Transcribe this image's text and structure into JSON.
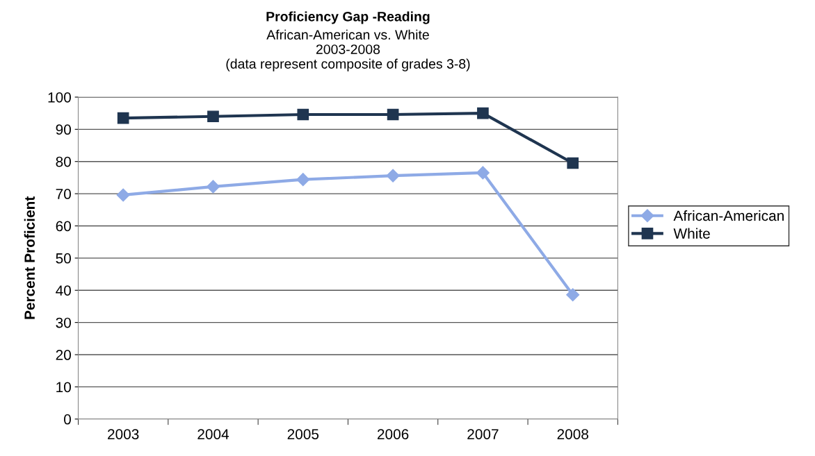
{
  "chart_data": {
    "type": "line",
    "title": "Proficiency Gap -Reading",
    "subtitle": "African-American vs. White\n2003-2008\n(data represent composite of grades 3-8)",
    "ylabel": "Percent Proficient",
    "categories": [
      "2003",
      "2004",
      "2005",
      "2006",
      "2007",
      "2008"
    ],
    "series": [
      {
        "name": "African-American",
        "color": "#8eaae6",
        "marker": "diamond",
        "values": [
          69.6,
          72.2,
          74.4,
          75.6,
          76.5,
          38.6
        ]
      },
      {
        "name": "White",
        "color": "#1f3550",
        "marker": "square",
        "values": [
          93.5,
          94,
          94.6,
          94.6,
          95,
          79.5
        ]
      }
    ],
    "ylim": [
      0,
      100
    ],
    "yticks": [
      0,
      10,
      20,
      30,
      40,
      50,
      60,
      70,
      80,
      90,
      100
    ],
    "grid": "y",
    "legend": "right",
    "line_style": "solid"
  }
}
